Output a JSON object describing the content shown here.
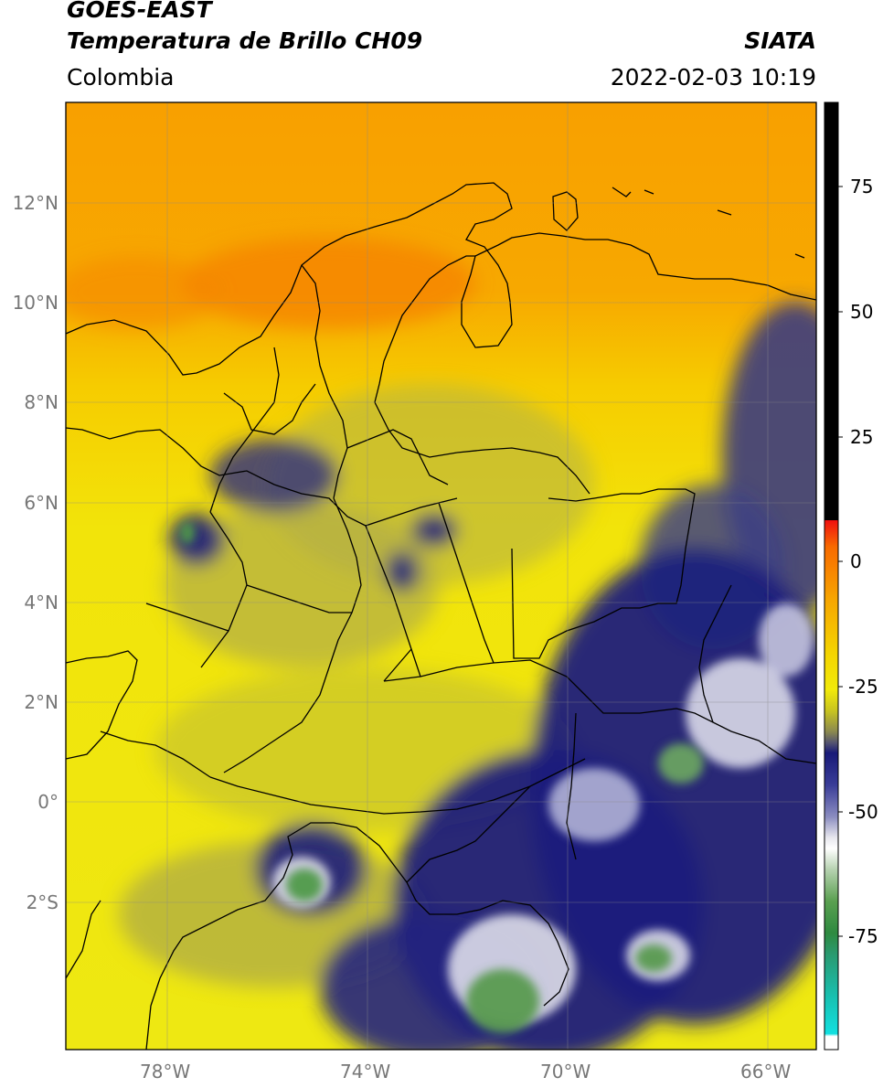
{
  "header": {
    "title_line1": "GOES-EAST",
    "title_line2": "Temperatura de Brillo CH09",
    "region": "Colombia",
    "agency": "SIATA",
    "timestamp": "2022-02-03 10:19"
  },
  "axes": {
    "lat_labels": [
      "12°N",
      "10°N",
      "8°N",
      "6°N",
      "4°N",
      "2°N",
      "0°",
      "2°S"
    ],
    "lon_labels": [
      "78°W",
      "74°W",
      "70°W",
      "66°W"
    ]
  },
  "colorbar": {
    "labels": [
      "75",
      "50",
      "25",
      "0",
      "-25",
      "-50",
      "-75"
    ]
  },
  "colors": {
    "orange": "#f89b00",
    "yellow": "#f2ea0a",
    "olive": "#a9a64a",
    "navy": "#1b1d7c",
    "white": "#f4f4f4",
    "green": "#5aa050",
    "cyan": "#17d9d9",
    "red": "#f01010",
    "black": "#000000"
  }
}
